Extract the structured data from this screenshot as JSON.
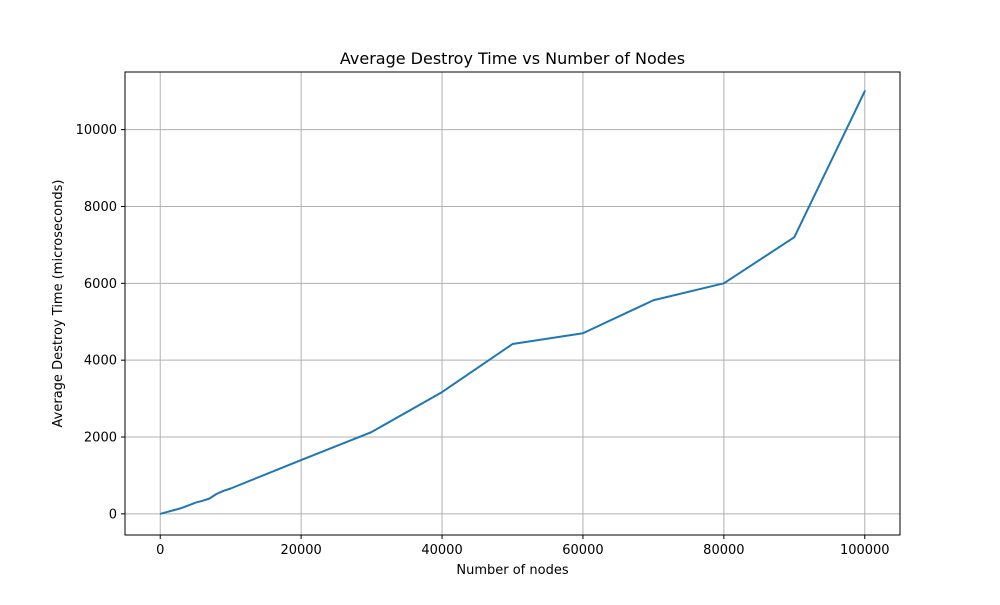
{
  "chart_data": {
    "type": "line",
    "title": "Average Destroy Time vs Number of Nodes",
    "xlabel": "Number of nodes",
    "ylabel": "Average Destroy Time (microseconds)",
    "xlim": [
      -5000,
      105000
    ],
    "ylim": [
      -550,
      11500
    ],
    "xticks": [
      0,
      20000,
      40000,
      60000,
      80000,
      100000
    ],
    "xtick_labels": [
      "0",
      "20000",
      "40000",
      "60000",
      "80000",
      "100000"
    ],
    "yticks": [
      0,
      2000,
      4000,
      6000,
      8000,
      10000
    ],
    "ytick_labels": [
      "0",
      "2000",
      "4000",
      "6000",
      "8000",
      "10000"
    ],
    "grid": true,
    "series": [
      {
        "color": "#1f77b4",
        "x": [
          100,
          1000,
          2000,
          3000,
          4000,
          5000,
          6000,
          7000,
          8000,
          9000,
          10000,
          20000,
          30000,
          40000,
          50000,
          60000,
          70000,
          80000,
          90000,
          100000
        ],
        "y": [
          5,
          50,
          100,
          150,
          220,
          290,
          340,
          400,
          520,
          600,
          660,
          1400,
          2130,
          3170,
          4420,
          4700,
          5560,
          6000,
          7200,
          11000
        ]
      }
    ]
  }
}
